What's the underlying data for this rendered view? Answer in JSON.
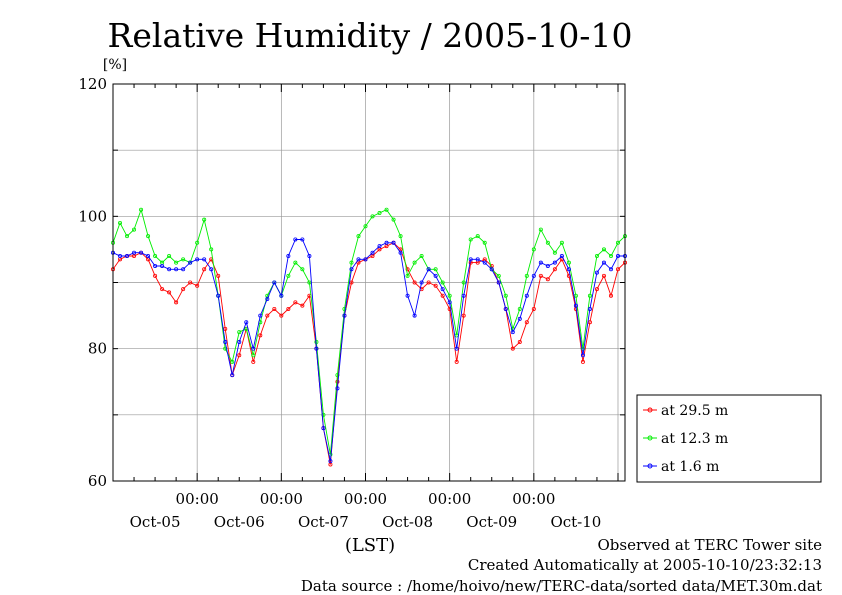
{
  "chart_data": {
    "type": "line",
    "title": "Relative Humidity / 2005-10-10",
    "ylabel": "[%]",
    "xlabel": "(LST)",
    "ylim": [
      60,
      120
    ],
    "yticks": [
      "60",
      "80",
      "100",
      "120"
    ],
    "x_time_labels": [
      "00:00",
      "00:00",
      "00:00",
      "00:00",
      "00:00"
    ],
    "x_date_labels": [
      "Oct-05",
      "Oct-06",
      "Oct-07",
      "Oct-08",
      "Oct-09",
      "Oct-10"
    ],
    "x_hour_range": [
      0,
      146
    ],
    "grid": true,
    "legend_position": "right",
    "x": [
      0,
      2,
      4,
      6,
      8,
      10,
      12,
      14,
      16,
      18,
      20,
      22,
      24,
      26,
      28,
      30,
      32,
      34,
      36,
      38,
      40,
      42,
      44,
      46,
      48,
      50,
      52,
      54,
      56,
      58,
      60,
      62,
      64,
      66,
      68,
      70,
      72,
      74,
      76,
      78,
      80,
      82,
      84,
      86,
      88,
      90,
      92,
      94,
      96,
      98,
      100,
      102,
      104,
      106,
      108,
      110,
      112,
      114,
      116,
      118,
      120,
      122,
      124,
      126,
      128,
      130,
      132,
      134,
      136,
      138,
      140,
      142,
      144,
      146
    ],
    "series": [
      {
        "name": "at 29.5 m",
        "color": "#ff0000",
        "values": [
          92.0,
          93.5,
          94.0,
          94.0,
          94.5,
          93.5,
          91.0,
          89.0,
          88.5,
          87.0,
          89.0,
          90.0,
          89.5,
          92.0,
          93.5,
          91.0,
          83.0,
          76.0,
          79.0,
          83.0,
          78.0,
          82.0,
          85.0,
          86.0,
          85.0,
          86.0,
          87.0,
          86.5,
          88.0,
          80.0,
          68.0,
          62.5,
          75.0,
          85.0,
          90.0,
          93.0,
          93.5,
          94.0,
          95.0,
          95.5,
          96.0,
          95.0,
          92.0,
          90.0,
          89.0,
          90.0,
          89.5,
          88.0,
          86.0,
          78.0,
          85.0,
          93.0,
          93.0,
          93.5,
          92.5,
          90.0,
          86.0,
          80.0,
          81.0,
          84.0,
          86.0,
          91.0,
          90.5,
          92.0,
          93.5,
          91.0,
          86.0,
          78.0,
          84.0,
          89.0,
          91.0,
          88.0,
          92.0,
          93.0
        ]
      },
      {
        "name": "at 12.3 m",
        "color": "#00ee00",
        "values": [
          96.0,
          99.0,
          97.0,
          98.0,
          101.0,
          97.0,
          94.0,
          93.0,
          94.0,
          93.0,
          93.5,
          93.0,
          96.0,
          99.5,
          95.0,
          88.0,
          80.0,
          78.0,
          82.5,
          83.0,
          79.0,
          84.0,
          88.0,
          90.0,
          88.0,
          91.0,
          93.0,
          92.0,
          90.0,
          81.0,
          70.0,
          64.0,
          76.0,
          86.0,
          93.0,
          97.0,
          98.5,
          100.0,
          100.5,
          101.0,
          99.5,
          97.0,
          91.0,
          93.0,
          94.0,
          92.0,
          92.0,
          90.0,
          88.0,
          82.0,
          90.0,
          96.5,
          97.0,
          96.0,
          92.0,
          91.0,
          88.0,
          83.0,
          86.0,
          91.0,
          95.0,
          98.0,
          96.0,
          94.5,
          96.0,
          93.0,
          88.0,
          80.0,
          88.0,
          94.0,
          95.0,
          94.0,
          96.0,
          97.0
        ]
      },
      {
        "name": "at 1.6 m",
        "color": "#0000ff",
        "values": [
          94.5,
          94.0,
          94.0,
          94.5,
          94.5,
          94.0,
          92.5,
          92.5,
          92.0,
          92.0,
          92.0,
          93.0,
          93.5,
          93.5,
          92.0,
          88.0,
          81.0,
          76.0,
          81.0,
          84.0,
          80.0,
          85.0,
          87.5,
          90.0,
          88.0,
          94.0,
          96.5,
          96.5,
          94.0,
          80.0,
          68.0,
          63.0,
          74.0,
          85.0,
          92.0,
          93.5,
          93.5,
          94.5,
          95.5,
          96.0,
          96.0,
          94.5,
          88.0,
          85.0,
          90.0,
          92.0,
          91.0,
          89.0,
          87.0,
          80.0,
          88.0,
          93.5,
          93.5,
          93.0,
          92.0,
          90.0,
          86.0,
          82.5,
          84.5,
          88.0,
          91.0,
          93.0,
          92.5,
          93.0,
          94.0,
          92.0,
          86.5,
          79.0,
          86.0,
          91.5,
          93.0,
          92.0,
          94.0,
          94.0
        ]
      }
    ]
  },
  "footer": {
    "observed": "Observed at TERC Tower site",
    "created": "Created Automatically at 2005-10-10/23:32:13",
    "source": "Data source : /home/hoivo/new/TERC-data/sorted  data/MET.30m.dat"
  }
}
